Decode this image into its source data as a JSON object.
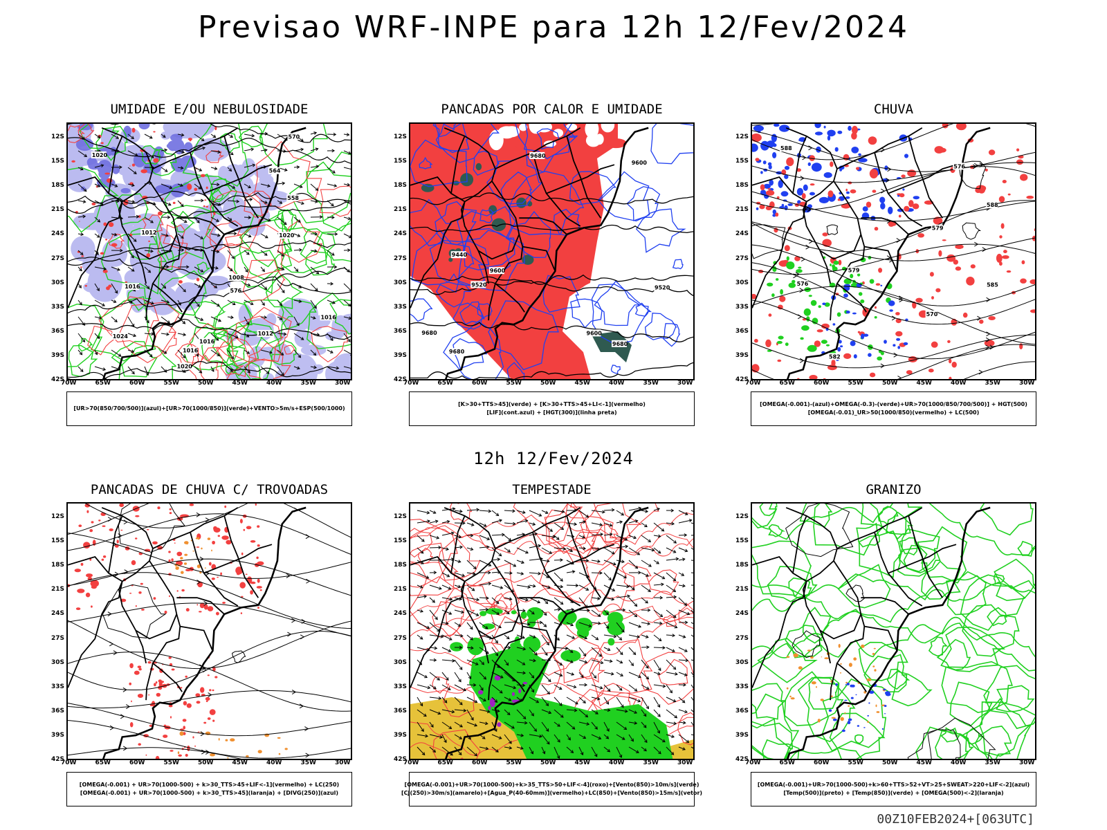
{
  "page": {
    "title": "Previsao WRF-INPE  para 12h 12/Fev/2024",
    "subtitle": "12h 12/Fev/2024",
    "footer": "00Z10FEB2024+[063UTC]"
  },
  "axes": {
    "lat_labels": [
      "12S",
      "15S",
      "18S",
      "21S",
      "24S",
      "27S",
      "30S",
      "33S",
      "36S",
      "39S",
      "42S"
    ],
    "lon_labels": [
      "70W",
      "65W",
      "60W",
      "55W",
      "50W",
      "45W",
      "40W",
      "35W",
      "30W"
    ]
  },
  "colors": {
    "red": "#f24040",
    "green": "#20d020",
    "blue": "#2040f0",
    "lavender": "#b8b8f0",
    "yellow": "#e6c23a",
    "orange": "#f09030",
    "darkteal": "#2f5a50",
    "purple": "#a020c0"
  },
  "panels": [
    {
      "id": "umidade",
      "title": "UMIDADE E/OU NEBULOSIDADE",
      "legend": [
        "[UR>70(850/700/500)](azul)+[UR>70(1000/850)](verde)+VENTO>5m/s+ESP(500/1000)"
      ],
      "contour_labels": [
        "1016",
        "1012",
        "1016",
        "1020",
        "1016",
        "1012",
        "1020",
        "1016",
        "1008",
        "1024",
        "576",
        "570",
        "564",
        "558",
        "1020"
      ]
    },
    {
      "id": "pancadas-calor",
      "title": "PANCADAS POR CALOR E UMIDADE",
      "legend": [
        "[K>30+TTS>45](verde) + [K>30+TTS>45+LI<-1](vermelho)",
        "[LIF](cont.azul) + [HGT(300)](linha preta)"
      ],
      "contour_labels": [
        "9680",
        "9680",
        "9600",
        "9680",
        "9600",
        "9440",
        "9520",
        "9520",
        "9600",
        "9680"
      ]
    },
    {
      "id": "chuva",
      "title": "CHUVA",
      "legend": [
        "[OMEGA(-0.001)-(azul)+OMEGA(-0.3)-(verde)+UR>70(1000/850/700/500)] + HGT(500)",
        "[OMEGA(-0.01)_UR>50(1000/850)(vermelho) + LC(500)"
      ],
      "contour_labels": [
        "588",
        "588",
        "585",
        "582",
        "579",
        "576",
        "570",
        "579",
        "576"
      ]
    },
    {
      "id": "pancadas-trovoadas",
      "title": "PANCADAS DE CHUVA C/ TROVOADAS",
      "legend": [
        "[OMEGA(-0.001) + UR>70(1000-500) + k>30_TTS>45+LIF<-1](vermelho) + LC(250)",
        "[OMEGA(-0.001) + UR>70(1000-500) + k>30_TTS>45](laranja) + [DIVG(250)](azul)"
      ],
      "contour_labels": []
    },
    {
      "id": "tempestade",
      "title": "TEMPESTADE",
      "legend": [
        "[OMEGA(-0.001)+UR>70(1000-500)+k>35_TTS>50+LIF<-4](roxo)+[Vento(850)>10m/s](verde)",
        "[CJ(250)>30m/s](amarelo)+[Agua_P(40-60mm)](vermelho)+LC(850)+[Vento(850)>15m/s](vetor)"
      ],
      "contour_labels": []
    },
    {
      "id": "granizo",
      "title": "GRANIZO",
      "legend": [
        "[OMEGA(-0.001)+UR>70(1000-500)+k>60+TTS>52+VT>25+SWEAT>220+LIF<-2](azul)",
        "[Temp(500)](preto) + [Temp(850)](verde) + [OMEGA(500)<-2](laranja)"
      ],
      "contour_labels": []
    }
  ]
}
